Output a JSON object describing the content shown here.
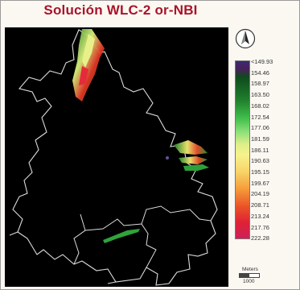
{
  "title": "Solución WLC-2 or-NBI",
  "north_arrow": {
    "icon": "north-arrow-icon"
  },
  "legend": {
    "values": [
      "<149.93",
      "154.46",
      "158.97",
      "163.50",
      "168.02",
      "172.54",
      "177.06",
      "181.59",
      "186.11",
      "190.63",
      "195.15",
      "199.67",
      "204.19",
      "208.71",
      "213.24",
      "217.76",
      "222.28"
    ],
    "colors": {
      "low": "#3a2a6e",
      "mid": "#f7f28c",
      "high": "#cf1f5a"
    }
  },
  "scale_bar": {
    "label": "Meters",
    "value": "1000"
  },
  "colors": {
    "background": "#000000",
    "boundary": "#dcdcdc",
    "title": "#a8142a"
  }
}
